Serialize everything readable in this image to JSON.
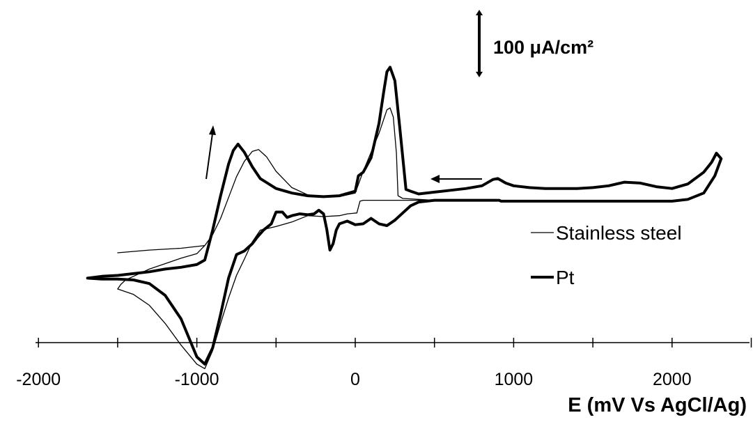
{
  "chart_data": {
    "type": "line",
    "xlabel": "E (mV Vs AgCl/Ag)",
    "ylabel": "",
    "xlim": [
      -2000,
      2500
    ],
    "xticks": [
      -2000,
      -1500,
      -1000,
      -500,
      0,
      500,
      1000,
      1500,
      2000,
      2500
    ],
    "xtick_labels": [
      "-2000",
      "-1000",
      "0",
      "1000",
      "2000"
    ],
    "scale_bar_label": "100 μA/cm²",
    "scale_bar_value": 100,
    "grid": false,
    "legend_position": "bottom-right",
    "series": [
      {
        "name": "Stainless steel",
        "color": "#000000",
        "upper": [
          [
            -1500,
            -10
          ],
          [
            -1300,
            -7
          ],
          [
            -1100,
            -5
          ],
          [
            -950,
            -2
          ],
          [
            -900,
            10
          ],
          [
            -850,
            28
          ],
          [
            -800,
            51
          ],
          [
            -750,
            74
          ],
          [
            -700,
            91
          ],
          [
            -650,
            102
          ],
          [
            -610,
            104
          ],
          [
            -560,
            96
          ],
          [
            -500,
            80
          ],
          [
            -400,
            62
          ],
          [
            -300,
            54
          ],
          [
            -200,
            52
          ],
          [
            -100,
            52
          ],
          [
            0,
            56
          ],
          [
            50,
            80
          ],
          [
            100,
            101
          ],
          [
            150,
            122
          ],
          [
            200,
            148
          ],
          [
            220,
            150
          ],
          [
            240,
            140
          ],
          [
            260,
            100
          ],
          [
            270,
            53
          ],
          [
            300,
            50
          ],
          [
            400,
            49
          ],
          [
            500,
            48
          ],
          [
            600,
            48
          ],
          [
            700,
            48
          ],
          [
            800,
            48
          ],
          [
            900,
            48
          ]
        ],
        "lower": [
          [
            900,
            48
          ],
          [
            800,
            48
          ],
          [
            600,
            48
          ],
          [
            400,
            48
          ],
          [
            300,
            48
          ],
          [
            250,
            48
          ],
          [
            200,
            48
          ],
          [
            100,
            48
          ],
          [
            50,
            48
          ],
          [
            30,
            47
          ],
          [
            10,
            34
          ],
          [
            -50,
            33
          ],
          [
            -100,
            31
          ],
          [
            -200,
            30
          ],
          [
            -300,
            31
          ],
          [
            -400,
            24
          ],
          [
            -500,
            19
          ],
          [
            -600,
            15
          ],
          [
            -650,
            2
          ],
          [
            -700,
            -17
          ],
          [
            -750,
            -35
          ],
          [
            -800,
            -60
          ],
          [
            -850,
            -88
          ],
          [
            -900,
            -118
          ],
          [
            -950,
            -138
          ],
          [
            -1000,
            -133
          ],
          [
            -1100,
            -112
          ],
          [
            -1200,
            -88
          ],
          [
            -1300,
            -68
          ],
          [
            -1400,
            -56
          ],
          [
            -1500,
            -50
          ],
          [
            -1480,
            -45
          ],
          [
            -1450,
            -40
          ],
          [
            -1400,
            -36
          ],
          [
            -1300,
            -28
          ],
          [
            -1200,
            -22
          ],
          [
            -1100,
            -16
          ],
          [
            -1000,
            -11
          ],
          [
            -950,
            -2
          ]
        ]
      },
      {
        "name": "Pt",
        "color": "#000000",
        "upper": [
          [
            -1690,
            -38
          ],
          [
            -1600,
            -36
          ],
          [
            -1500,
            -35
          ],
          [
            -1400,
            -33
          ],
          [
            -1300,
            -31
          ],
          [
            -1200,
            -28
          ],
          [
            -1100,
            -26
          ],
          [
            -1000,
            -23
          ],
          [
            -950,
            -18
          ],
          [
            -900,
            15
          ],
          [
            -850,
            53
          ],
          [
            -800,
            88
          ],
          [
            -770,
            103
          ],
          [
            -740,
            110
          ],
          [
            -700,
            101
          ],
          [
            -650,
            85
          ],
          [
            -600,
            72
          ],
          [
            -500,
            61
          ],
          [
            -400,
            56
          ],
          [
            -300,
            53
          ],
          [
            -200,
            52
          ],
          [
            -100,
            53
          ],
          [
            0,
            58
          ],
          [
            20,
            75
          ],
          [
            50,
            79
          ],
          [
            100,
            95
          ],
          [
            150,
            133
          ],
          [
            180,
            168
          ],
          [
            200,
            190
          ],
          [
            220,
            195
          ],
          [
            250,
            180
          ],
          [
            280,
            130
          ],
          [
            320,
            60
          ],
          [
            350,
            58
          ],
          [
            400,
            55
          ],
          [
            500,
            57
          ],
          [
            600,
            59
          ],
          [
            700,
            61
          ],
          [
            800,
            64
          ],
          [
            870,
            71
          ],
          [
            900,
            72
          ],
          [
            950,
            67
          ],
          [
            1000,
            64
          ],
          [
            1100,
            62
          ],
          [
            1200,
            61
          ],
          [
            1300,
            61
          ],
          [
            1400,
            61
          ],
          [
            1500,
            62
          ],
          [
            1600,
            64
          ],
          [
            1700,
            68
          ],
          [
            1800,
            67
          ],
          [
            1900,
            63
          ],
          [
            2000,
            61
          ],
          [
            2100,
            66
          ],
          [
            2200,
            79
          ],
          [
            2250,
            90
          ],
          [
            2280,
            100
          ],
          [
            2310,
            94
          ]
        ],
        "lower": [
          [
            2310,
            94
          ],
          [
            2270,
            75
          ],
          [
            2200,
            56
          ],
          [
            2100,
            49
          ],
          [
            2000,
            47
          ],
          [
            1500,
            47
          ],
          [
            1000,
            47
          ],
          [
            920,
            47
          ],
          [
            910,
            48
          ],
          [
            700,
            48
          ],
          [
            500,
            48
          ],
          [
            400,
            46
          ],
          [
            350,
            42
          ],
          [
            300,
            34
          ],
          [
            250,
            26
          ],
          [
            200,
            20
          ],
          [
            150,
            22
          ],
          [
            100,
            28
          ],
          [
            50,
            22
          ],
          [
            0,
            21
          ],
          [
            -50,
            25
          ],
          [
            -100,
            22
          ],
          [
            -120,
            15
          ],
          [
            -140,
            0
          ],
          [
            -160,
            -7
          ],
          [
            -180,
            16
          ],
          [
            -200,
            33
          ],
          [
            -230,
            37
          ],
          [
            -260,
            33
          ],
          [
            -300,
            32
          ],
          [
            -350,
            33
          ],
          [
            -400,
            31
          ],
          [
            -430,
            29
          ],
          [
            -460,
            35
          ],
          [
            -500,
            35
          ],
          [
            -530,
            22
          ],
          [
            -580,
            15
          ],
          [
            -620,
            7
          ],
          [
            -650,
            0
          ],
          [
            -700,
            -8
          ],
          [
            -750,
            -12
          ],
          [
            -800,
            -38
          ],
          [
            -850,
            -78
          ],
          [
            -900,
            -115
          ],
          [
            -950,
            -133
          ],
          [
            -1000,
            -125
          ],
          [
            -1100,
            -83
          ],
          [
            -1200,
            -57
          ],
          [
            -1300,
            -44
          ],
          [
            -1400,
            -40
          ],
          [
            -1500,
            -39
          ],
          [
            -1600,
            -39
          ],
          [
            -1690,
            -38
          ]
        ]
      }
    ],
    "annotations": [
      "arrow up near -930 mV",
      "arrow left near 700 mV"
    ]
  }
}
